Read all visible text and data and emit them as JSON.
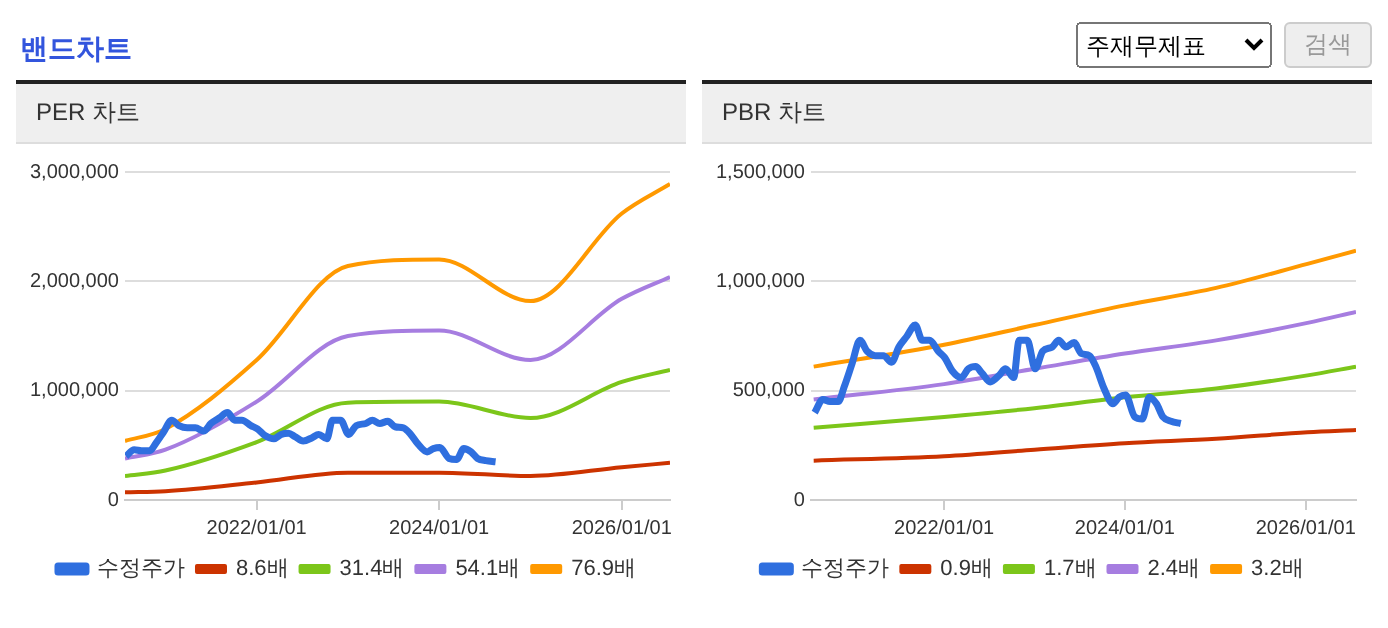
{
  "chart_data": [
    {
      "type": "line",
      "title": "PER 차트",
      "annotations": [
        "밴드차트",
        "주재무제표",
        "검색"
      ],
      "x": [
        "2020-07-23",
        "2021-01-01",
        "2022-01-01",
        "2023-01-01",
        "2024-01-01",
        "2025-01-01",
        "2026-01-01",
        "2026-07-13"
      ],
      "series": [
        {
          "name": "수정주가",
          "color": "#2f6fdf",
          "x": [
            "2020-07-27",
            "2020-08-29",
            "2020-09-27",
            "2020-10-30",
            "2020-11-24",
            "2020-12-24",
            "2021-01-26",
            "2021-02-24",
            "2021-03-29",
            "2021-05-01",
            "2021-06-03",
            "2021-07-02",
            "2021-08-04",
            "2021-09-06",
            "2021-10-05",
            "2021-11-03",
            "2021-12-09",
            "2022-01-04",
            "2022-02-03",
            "2022-03-11",
            "2022-04-09",
            "2022-05-08",
            "2022-06-03",
            "2022-07-06",
            "2022-08-11",
            "2022-09-06",
            "2022-10-09",
            "2022-10-31",
            "2022-12-03",
            "2023-01-04",
            "2023-02-03",
            "2023-03-14",
            "2023-04-09",
            "2023-05-08",
            "2023-06-10",
            "2023-07-09",
            "2023-08-11",
            "2023-09-06",
            "2023-10-09",
            "2023-11-14",
            "2023-12-09",
            "2024-01-04",
            "2024-02-10",
            "2024-03-11",
            "2024-04-09",
            "2024-05-08",
            "2024-06-03",
            "2024-07-06",
            "2024-08-14"
          ],
          "values": [
            400000,
            460000,
            450000,
            450000,
            520000,
            620000,
            730000,
            680000,
            660000,
            660000,
            630000,
            700000,
            750000,
            800000,
            730000,
            730000,
            680000,
            650000,
            590000,
            560000,
            600000,
            610000,
            580000,
            540000,
            570000,
            600000,
            560000,
            730000,
            730000,
            600000,
            680000,
            700000,
            730000,
            700000,
            720000,
            670000,
            660000,
            610000,
            510000,
            440000,
            470000,
            480000,
            380000,
            370000,
            470000,
            440000,
            380000,
            360000,
            350000
          ]
        },
        {
          "name": "8.6배",
          "color": "#cc3300",
          "values": [
            70000,
            80000,
            160000,
            250000,
            250000,
            220000,
            300000,
            340000
          ]
        },
        {
          "name": "31.4배",
          "color": "#7cc61a",
          "values": [
            220000,
            270000,
            530000,
            890000,
            900000,
            750000,
            1080000,
            1190000
          ]
        },
        {
          "name": "54.1배",
          "color": "#a67de0",
          "values": [
            380000,
            460000,
            900000,
            1500000,
            1550000,
            1280000,
            1840000,
            2040000
          ]
        },
        {
          "name": "76.9배",
          "color": "#ff9900",
          "values": [
            540000,
            650000,
            1280000,
            2140000,
            2200000,
            1820000,
            2620000,
            2890000
          ]
        }
      ],
      "xlim": [
        "2020-07-23",
        "2026-07-13"
      ],
      "xticks": [
        {
          "value": "2022-01-01",
          "label": "2022/01/01"
        },
        {
          "value": "2024-01-01",
          "label": "2024/01/01"
        },
        {
          "value": "2026-01-01",
          "label": "2026/01/01"
        }
      ],
      "ylim": [
        0,
        3000000
      ],
      "yticks": [
        0,
        {
          "value": 1000000,
          "label": "1,000,000"
        },
        {
          "value": 2000000,
          "label": "2,000,000"
        },
        {
          "value": 3000000,
          "label": "3,000,000"
        }
      ],
      "grid": "y",
      "legend": "bottom",
      "marker": "none"
    },
    {
      "type": "line",
      "title": "PBR 차트",
      "x": [
        "2020-07-23",
        "2022-01-01",
        "2023-01-01",
        "2024-01-01",
        "2025-01-04",
        "2026-01-08",
        "2026-07-23"
      ],
      "series": [
        {
          "name": "수정주가",
          "color": "#2f6fdf",
          "x": [
            "2020-07-27",
            "2020-08-29",
            "2020-09-27",
            "2020-10-30",
            "2020-11-24",
            "2020-12-24",
            "2021-01-26",
            "2021-02-24",
            "2021-03-29",
            "2021-05-01",
            "2021-06-03",
            "2021-07-02",
            "2021-08-04",
            "2021-09-06",
            "2021-10-05",
            "2021-11-03",
            "2021-12-09",
            "2022-01-04",
            "2022-02-03",
            "2022-03-11",
            "2022-04-09",
            "2022-05-08",
            "2022-06-03",
            "2022-07-06",
            "2022-08-11",
            "2022-09-06",
            "2022-10-09",
            "2022-10-31",
            "2022-12-03",
            "2023-01-04",
            "2023-02-03",
            "2023-03-14",
            "2023-04-09",
            "2023-05-08",
            "2023-06-10",
            "2023-07-09",
            "2023-08-11",
            "2023-09-06",
            "2023-10-09",
            "2023-11-14",
            "2023-12-09",
            "2024-01-04",
            "2024-02-10",
            "2024-03-11",
            "2024-04-09",
            "2024-05-08",
            "2024-06-03",
            "2024-07-06",
            "2024-08-14"
          ],
          "values": [
            400000,
            460000,
            450000,
            450000,
            520000,
            620000,
            730000,
            680000,
            660000,
            660000,
            630000,
            700000,
            750000,
            800000,
            730000,
            730000,
            680000,
            650000,
            590000,
            560000,
            600000,
            610000,
            580000,
            540000,
            570000,
            600000,
            560000,
            730000,
            730000,
            600000,
            680000,
            700000,
            730000,
            700000,
            720000,
            670000,
            660000,
            610000,
            510000,
            440000,
            470000,
            480000,
            380000,
            370000,
            470000,
            440000,
            380000,
            360000,
            350000
          ]
        },
        {
          "name": "0.9배",
          "color": "#cc3300",
          "values": [
            180000,
            200000,
            230000,
            260000,
            280000,
            310000,
            320000
          ]
        },
        {
          "name": "1.7배",
          "color": "#7cc61a",
          "values": [
            330000,
            380000,
            420000,
            470000,
            510000,
            570000,
            610000
          ]
        },
        {
          "name": "2.4배",
          "color": "#a67de0",
          "values": [
            460000,
            530000,
            600000,
            670000,
            730000,
            810000,
            860000
          ]
        },
        {
          "name": "3.2배",
          "color": "#ff9900",
          "values": [
            610000,
            710000,
            800000,
            890000,
            970000,
            1080000,
            1140000
          ]
        }
      ],
      "xlim": [
        "2020-07-12",
        "2026-07-23"
      ],
      "xticks": [
        {
          "value": "2022-01-01",
          "label": "2022/01/01"
        },
        {
          "value": "2024-01-01",
          "label": "2024/01/01"
        },
        {
          "value": "2026-01-01",
          "label": "2026/01/01"
        }
      ],
      "ylim": [
        0,
        1500000
      ],
      "yticks": [
        0,
        {
          "value": 500000,
          "label": "500,000"
        },
        {
          "value": 1000000,
          "label": "1,000,000"
        },
        {
          "value": 1500000,
          "label": "1,500,000"
        }
      ],
      "grid": "y",
      "legend": "bottom",
      "marker": "none"
    }
  ]
}
